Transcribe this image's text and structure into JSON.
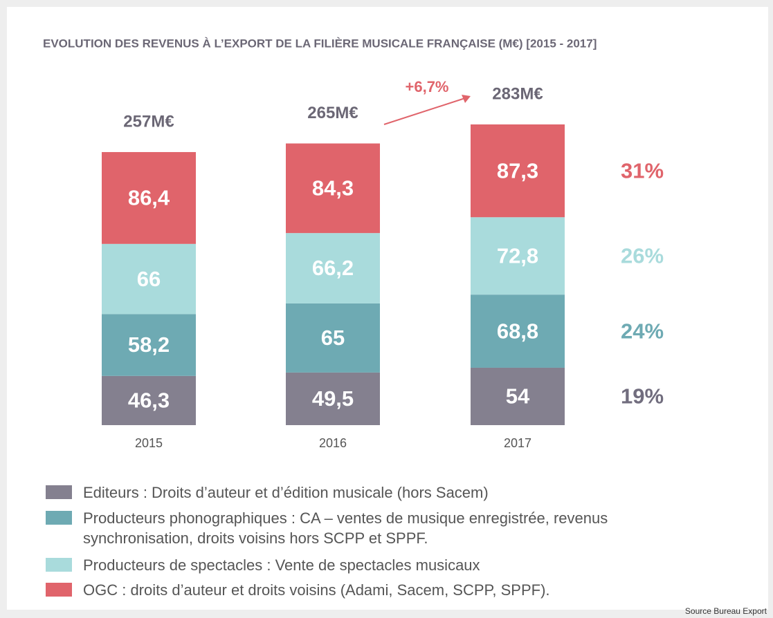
{
  "chart_data": {
    "type": "stacked_bar",
    "title": "EVOLUTION DES REVENUS À L’EXPORT DE LA FILIÈRE MUSICALE FRANÇAISE (M€) [2015 - 2017]",
    "categories": [
      "2015",
      "2016",
      "2017"
    ],
    "series": [
      {
        "name": "Editeurs : Droits d’auteur et d’édition musicale (hors Sacem)",
        "color": "#84808f",
        "values": [
          46.3,
          49.5,
          54
        ],
        "value_labels": [
          "46,3",
          "49,5",
          "54"
        ],
        "share": 19,
        "share_label": "19%"
      },
      {
        "name": "Producteurs phonographiques : CA – ventes de musique enregistrée, revenus  synchronisation, droits voisins hors SCPP et SPPF.",
        "color": "#6eaab3",
        "values": [
          58.2,
          65,
          68.8
        ],
        "value_labels": [
          "58,2",
          "65",
          "68,8"
        ],
        "share": 24,
        "share_label": "24%"
      },
      {
        "name": "Producteurs de spectacles : Vente de spectacles musicaux",
        "color": "#a9dbdc",
        "values": [
          66,
          66.2,
          72.8
        ],
        "value_labels": [
          "66",
          "66,2",
          "72,8"
        ],
        "share": 26,
        "share_label": "26%"
      },
      {
        "name": "OGC : droits d’auteur et droits voisins (Adami, Sacem, SCPP, SPPF).",
        "color": "#e0646b",
        "values": [
          86.4,
          84.3,
          87.3
        ],
        "value_labels": [
          "86,4",
          "84,3",
          "87,3"
        ],
        "share": 31,
        "share_label": "31%"
      }
    ],
    "totals": {
      "values": [
        257,
        265,
        283
      ],
      "value_labels": [
        "257M€",
        "265M€",
        "283M€"
      ]
    },
    "annotation": "+6,7%",
    "source": "Source Bureau Export"
  }
}
